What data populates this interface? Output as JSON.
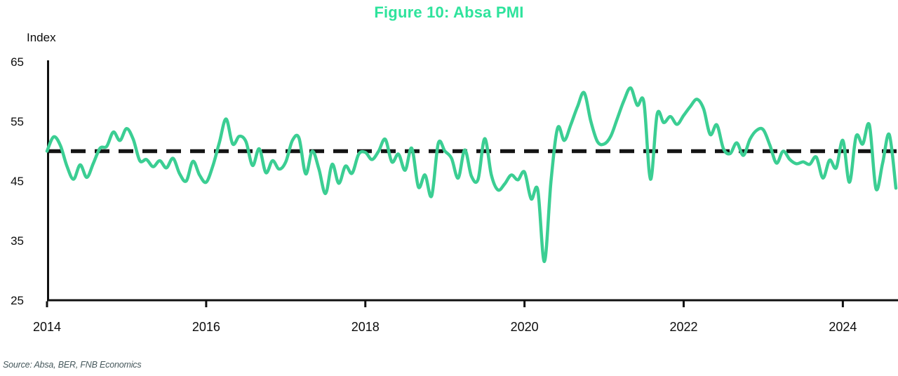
{
  "figure": {
    "title": "Figure 10: Absa PMI",
    "y_axis_label": "Index",
    "source": "Source: Absa, BER, FNB Economics"
  },
  "colors": {
    "title": "#2EE39C",
    "line": "#3BCE93",
    "axis": "#111111",
    "dashed_reference": "#141414",
    "tick_text": "#0c0c0c",
    "source_text": "#46585C",
    "background": "#ffffff"
  },
  "chart_data": {
    "type": "line",
    "title": "Figure 10: Absa PMI",
    "xlabel": "",
    "ylabel": "Index",
    "x_start": "2014-01",
    "x_frequency": "monthly",
    "x_tick_labels": [
      "2014",
      "2016",
      "2018",
      "2020",
      "2022",
      "2024"
    ],
    "y_ticks": [
      25,
      35,
      45,
      55,
      65
    ],
    "ylim": [
      25,
      65
    ],
    "grid": false,
    "legend_position": "none",
    "reference_line": {
      "value": 50,
      "style": "dashed"
    },
    "series": [
      {
        "name": "Absa PMI",
        "values": [
          50.0,
          52.4,
          51.0,
          47.5,
          45.3,
          47.7,
          45.6,
          48.0,
          50.5,
          50.8,
          53.2,
          51.8,
          53.8,
          52.0,
          48.4,
          48.6,
          47.4,
          48.4,
          47.2,
          48.8,
          46.2,
          45.0,
          48.3,
          46.0,
          44.8,
          47.5,
          51.5,
          55.4,
          51.2,
          52.5,
          51.6,
          47.6,
          50.4,
          46.4,
          48.4,
          47.0,
          48.2,
          51.8,
          52.2,
          46.2,
          50.0,
          47.0,
          42.9,
          47.8,
          44.6,
          47.5,
          46.3,
          49.5,
          49.8,
          48.6,
          50.0,
          52.0,
          48.2,
          49.5,
          46.8,
          50.5,
          44.0,
          46.0,
          42.5,
          51.3,
          50.0,
          48.8,
          45.5,
          50.2,
          45.8,
          45.3,
          52.1,
          46.0,
          43.5,
          44.5,
          46.0,
          45.2,
          46.5,
          42.0,
          43.5,
          31.5,
          45.0,
          53.9,
          51.8,
          54.5,
          57.5,
          59.8,
          55.0,
          51.6,
          51.2,
          52.5,
          55.5,
          58.5,
          60.6,
          57.7,
          58.2,
          45.3,
          56.2,
          54.8,
          55.8,
          54.5,
          56.0,
          57.5,
          58.7,
          57.1,
          52.8,
          54.4,
          50.4,
          49.6,
          51.4,
          49.3,
          52.0,
          53.5,
          53.6,
          51.0,
          48.0,
          50.0,
          48.6,
          47.9,
          48.2,
          47.8,
          49.0,
          45.5,
          48.5,
          47.2,
          51.8,
          44.8,
          52.5,
          51.2,
          54.4,
          43.7,
          48.0,
          52.8,
          43.8
        ]
      }
    ]
  }
}
